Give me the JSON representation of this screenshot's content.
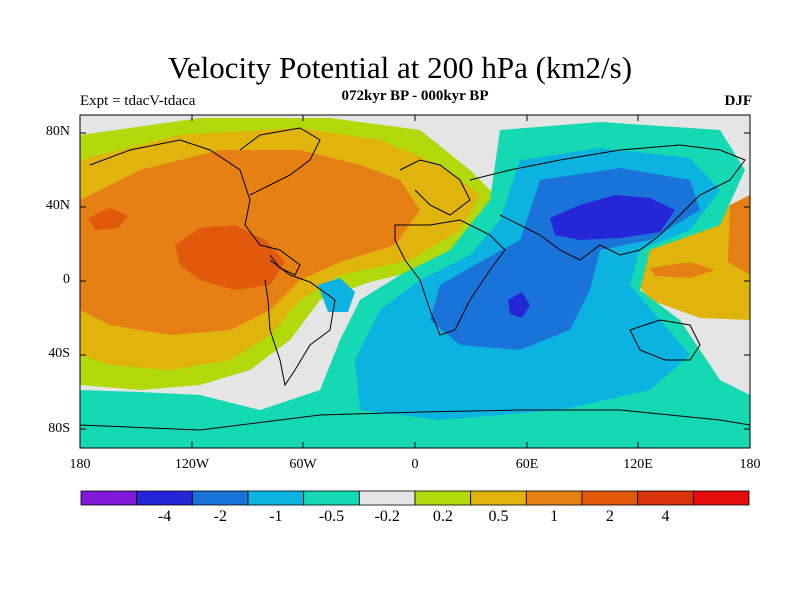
{
  "title": "Velocity Potential at 200 hPa (km2/s)",
  "subtitle": "072kyr BP - 000kyr BP",
  "left_label": "Expt = tdacV-tdaca",
  "right_label": "DJF",
  "lat_labels": [
    "80N",
    "40N",
    "0",
    "40S",
    "80S"
  ],
  "lon_labels": [
    "180",
    "120W",
    "60W",
    "0",
    "60E",
    "120E",
    "180"
  ],
  "colorbar": {
    "colors": [
      "#7f1ad9",
      "#2626d9",
      "#1a73d9",
      "#0db3e0",
      "#14d9b3",
      "#e5e5e5",
      "#b3d90d",
      "#e0b30d",
      "#e67f14",
      "#e0590d",
      "#d9330d",
      "#e60d0d"
    ],
    "labels": [
      "-4",
      "-2",
      "-1",
      "-0.5",
      "-0.2",
      "0.2",
      "0.5",
      "1",
      "2",
      "4"
    ]
  },
  "map": {
    "background_color": "#e5e5e5"
  }
}
